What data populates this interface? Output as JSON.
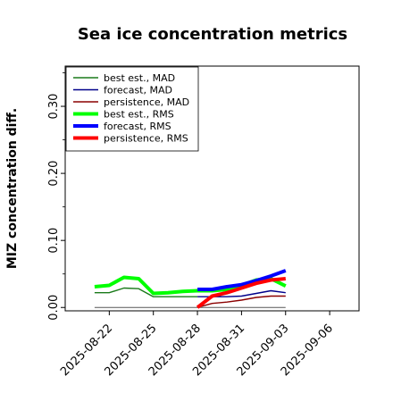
{
  "chart_data": {
    "type": "line",
    "title": "Sea ice concentration metrics",
    "xlabel": "",
    "ylabel": "MIZ concentration diff.",
    "xlim": [
      "2025-08-19",
      "2025-09-08"
    ],
    "ylim": [
      -0.005,
      0.36
    ],
    "x_ticks": [
      "2025-08-22",
      "2025-08-25",
      "2025-08-28",
      "2025-08-31",
      "2025-09-03",
      "2025-09-06"
    ],
    "x_tick_highlight": "2025-08-28",
    "x_tick_highlight_color": "#228b22",
    "y_ticks": [
      "0.00",
      "0.10",
      "0.20",
      "0.30"
    ],
    "y_tick_values": [
      0.0,
      0.1,
      0.2,
      0.3
    ],
    "grid": false,
    "legend_position": "top-left",
    "zero_line": {
      "from": "2025-08-21",
      "to": "2025-09-03",
      "value": 0.0,
      "color": "#555555"
    },
    "series": [
      {
        "name": "best est., MAD",
        "color": "#1a7a1a",
        "width": 1.4,
        "x": [
          "2025-08-21",
          "2025-08-22",
          "2025-08-23",
          "2025-08-24",
          "2025-08-25",
          "2025-08-26",
          "2025-08-27",
          "2025-08-28"
        ],
        "y": [
          0.022,
          0.022,
          0.029,
          0.028,
          0.016,
          0.016,
          0.016,
          0.016
        ]
      },
      {
        "name": "forecast,  MAD",
        "color": "#00008b",
        "width": 1.4,
        "x": [
          "2025-08-28",
          "2025-08-29",
          "2025-08-30",
          "2025-08-31",
          "2025-09-01",
          "2025-09-02",
          "2025-09-03"
        ],
        "y": [
          0.016,
          0.016,
          0.016,
          0.017,
          0.021,
          0.025,
          0.022
        ]
      },
      {
        "name": "persistence, MAD",
        "color": "#8b0000",
        "width": 1.4,
        "x": [
          "2025-08-28",
          "2025-08-29",
          "2025-08-30",
          "2025-08-31",
          "2025-09-01",
          "2025-09-02",
          "2025-09-03"
        ],
        "y": [
          0.0,
          0.006,
          0.008,
          0.011,
          0.015,
          0.017,
          0.017
        ]
      },
      {
        "name": "best est., RMS",
        "color": "#00ff00",
        "width": 4,
        "x": [
          "2025-08-21",
          "2025-08-22",
          "2025-08-23",
          "2025-08-24",
          "2025-08-25",
          "2025-08-26",
          "2025-08-27",
          "2025-08-28",
          "2025-08-29",
          "2025-08-30",
          "2025-08-31",
          "2025-09-01",
          "2025-09-02",
          "2025-09-03"
        ],
        "y": [
          0.031,
          0.033,
          0.045,
          0.043,
          0.021,
          0.022,
          0.024,
          0.025,
          0.025,
          0.027,
          0.033,
          0.041,
          0.043,
          0.032
        ]
      },
      {
        "name": "forecast,  RMS",
        "color": "#0000ff",
        "width": 4,
        "x": [
          "2025-08-28",
          "2025-08-29",
          "2025-08-30",
          "2025-08-31",
          "2025-09-01",
          "2025-09-02",
          "2025-09-03"
        ],
        "y": [
          0.027,
          0.027,
          0.031,
          0.034,
          0.04,
          0.047,
          0.055
        ]
      },
      {
        "name": "persistence, RMS",
        "color": "#ff0000",
        "width": 4,
        "x": [
          "2025-08-28",
          "2025-08-29",
          "2025-08-30",
          "2025-08-31",
          "2025-09-01",
          "2025-09-02",
          "2025-09-03"
        ],
        "y": [
          0.0,
          0.017,
          0.022,
          0.029,
          0.036,
          0.041,
          0.043
        ]
      }
    ]
  }
}
